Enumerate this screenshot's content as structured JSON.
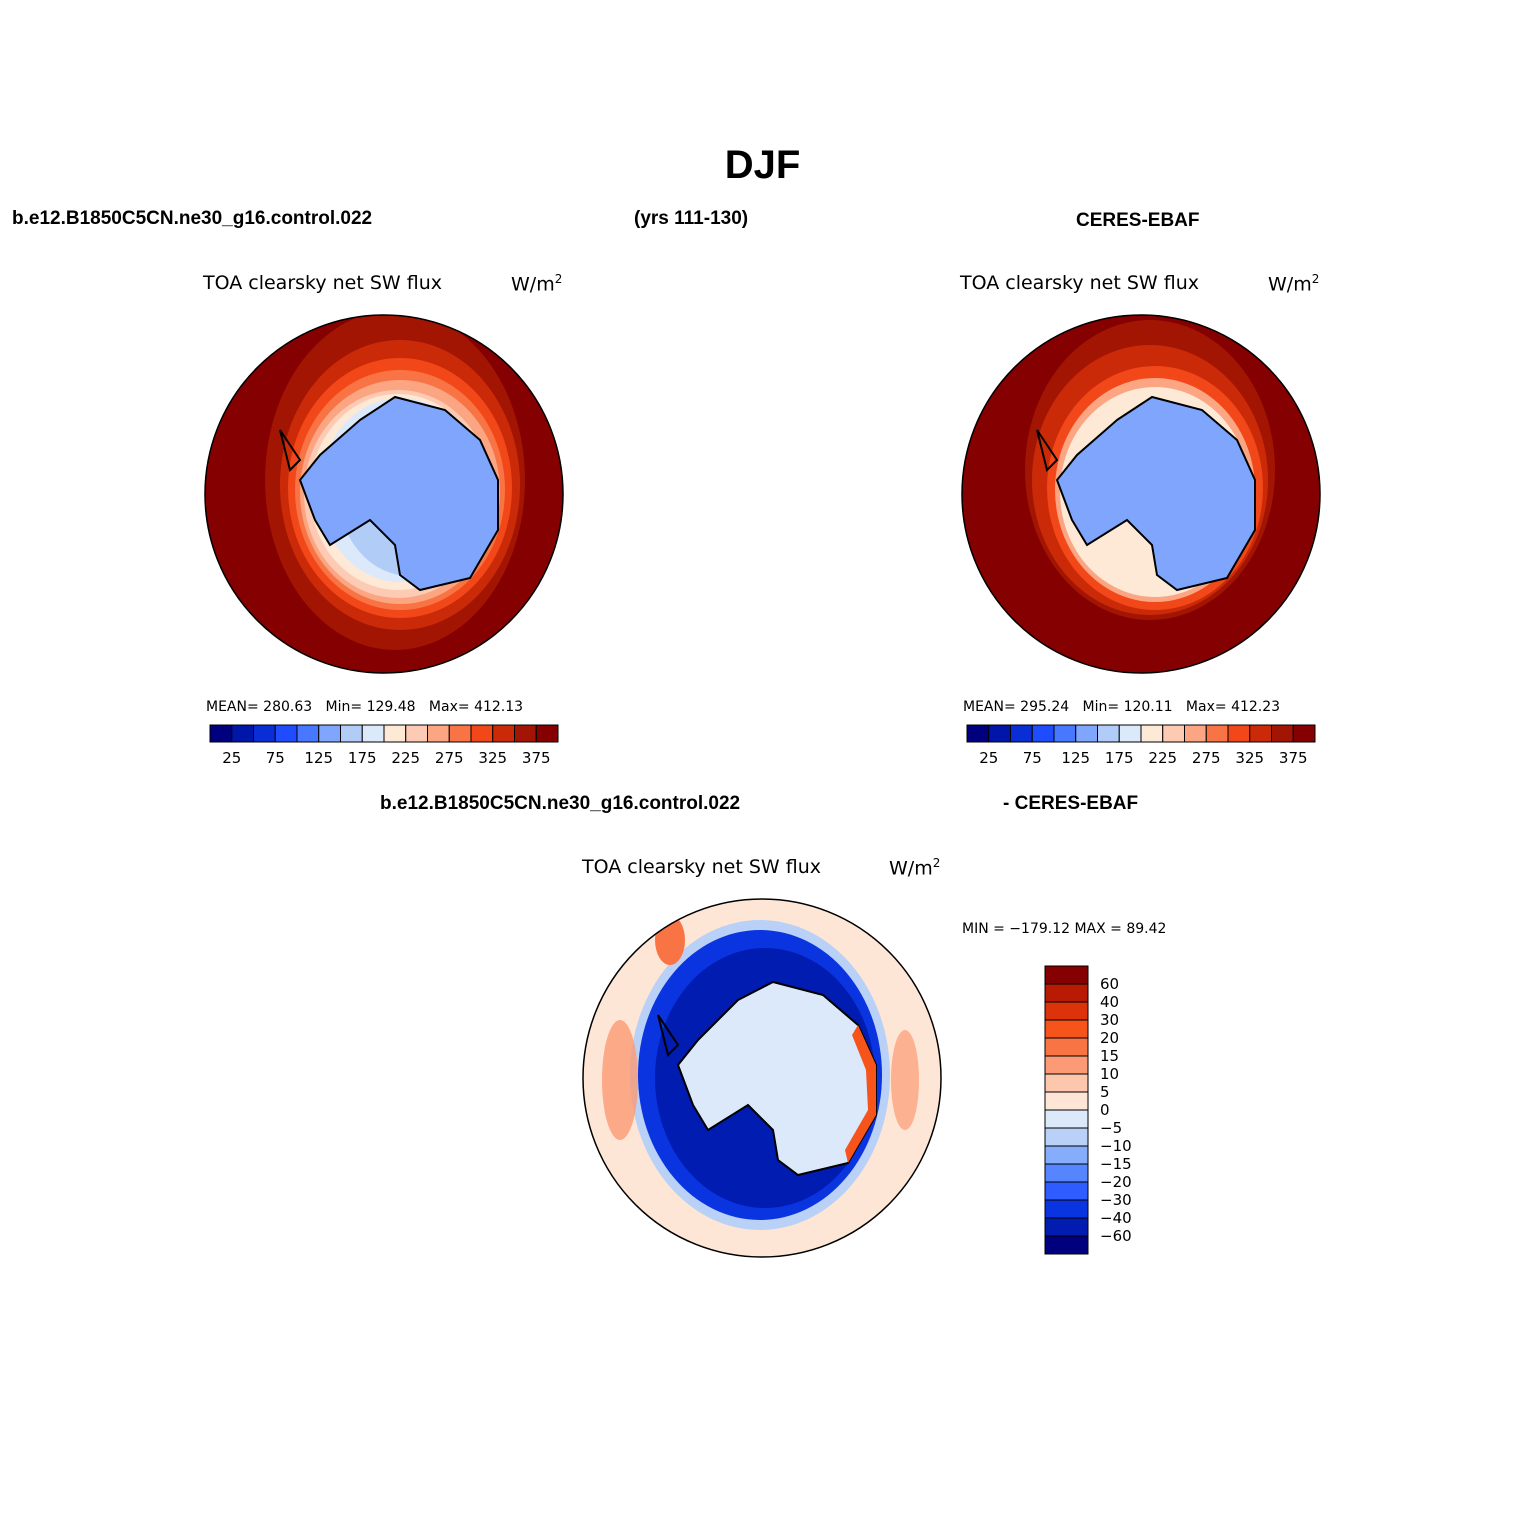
{
  "season": "DJF",
  "header": {
    "case_name": "b.e12.B1850C5CN.ne30_g16.control.022",
    "years": "(yrs 111-130)",
    "obs_name": "CERES-EBAF",
    "diff_case": "b.e12.B1850C5CN.ne30_g16.control.022",
    "diff_obs": "- CERES-EBAF"
  },
  "panels": {
    "model": {
      "title": "TOA clearsky net SW flux",
      "units_base": "W/m",
      "units_exp": "2",
      "mean_label": "MEAN=",
      "mean": "280.63",
      "min_label": "Min=",
      "min": "129.48",
      "max_label": "Max=",
      "max": "412.13"
    },
    "obs": {
      "title": "TOA clearsky net SW flux",
      "units_base": "W/m",
      "units_exp": "2",
      "mean_label": "MEAN=",
      "mean": "295.24",
      "min_label": "Min=",
      "min": "120.11",
      "max_label": "Max=",
      "max": "412.23"
    },
    "diff": {
      "title": "TOA clearsky net SW flux",
      "units_base": "W/m",
      "units_exp": "2",
      "minmax": "MIN = −179.12 MAX =   89.42"
    }
  },
  "colorbars": {
    "abs": {
      "colors": [
        "#00007f",
        "#0016a8",
        "#0a2ed6",
        "#1f4cff",
        "#4878ff",
        "#7fa6fc",
        "#b1ccf7",
        "#dbe9fb",
        "#fee8d6",
        "#fdcbb3",
        "#fba583",
        "#f97445",
        "#f24719",
        "#cb2a08",
        "#a31503",
        "#850000"
      ],
      "labels": [
        "25",
        "75",
        "125",
        "175",
        "225",
        "275",
        "325",
        "375"
      ]
    },
    "diff": {
      "colors": [
        "#850000",
        "#b91a04",
        "#dc330a",
        "#f7541b",
        "#f97445",
        "#fb9a74",
        "#fdc7ad",
        "#fee6d6",
        "#dbe9fb",
        "#b9d0f7",
        "#86acfc",
        "#5586ff",
        "#2f5cff",
        "#0a34e0",
        "#011cb0",
        "#00007f"
      ],
      "labels": [
        "60",
        "40",
        "30",
        "20",
        "15",
        "10",
        "5",
        "0",
        "−5",
        "−10",
        "−15",
        "−20",
        "−30",
        "−40",
        "−60"
      ]
    }
  }
}
